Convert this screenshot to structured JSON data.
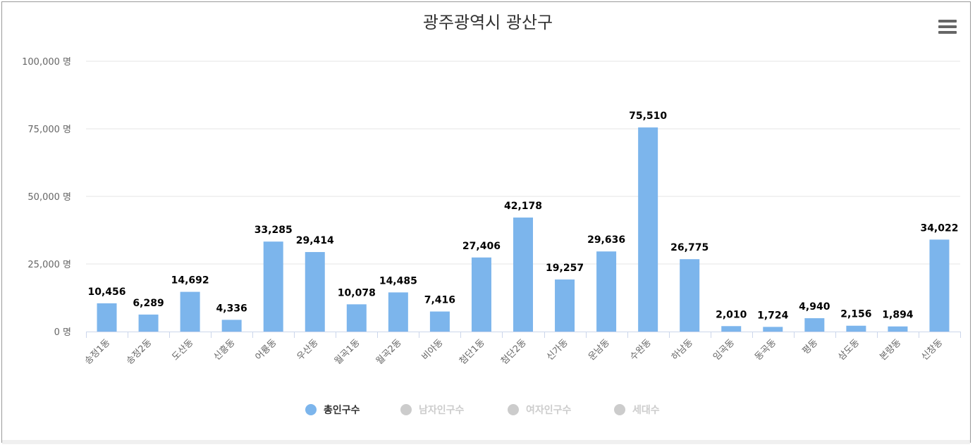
{
  "menu_icon": "hamburger-menu-icon",
  "chart_data": {
    "type": "bar",
    "title": "광주광역시 광산구",
    "categories": [
      "송정1동",
      "송정2동",
      "도산동",
      "신흥동",
      "어룡동",
      "우산동",
      "월곡1동",
      "월곡2동",
      "비아동",
      "첨단1동",
      "첨단2동",
      "신가동",
      "운남동",
      "수완동",
      "하남동",
      "임곡동",
      "동곡동",
      "평동",
      "삼도동",
      "본량동",
      "신창동"
    ],
    "series": [
      {
        "name": "총인구수",
        "color": "#7cb5ec",
        "visible": true,
        "values": [
          10456,
          6289,
          14692,
          4336,
          33285,
          29414,
          10078,
          14485,
          7416,
          27406,
          42178,
          19257,
          29636,
          75510,
          26775,
          2010,
          1724,
          4940,
          2156,
          1894,
          34022
        ],
        "data_labels": [
          "10,456",
          "6,289",
          "14,692",
          "4,336",
          "33,285",
          "29,414",
          "10,078",
          "14,485",
          "7,416",
          "27,406",
          "42,178",
          "19,257",
          "29,636",
          "75,510",
          "26,775",
          "2,010",
          "1,724",
          "4,940",
          "2,156",
          "1,894",
          "34,022"
        ]
      },
      {
        "name": "남자인구수",
        "visible": false
      },
      {
        "name": "여자인구수",
        "visible": false
      },
      {
        "name": "세대수",
        "visible": false
      }
    ],
    "yticks": [
      0,
      25000,
      50000,
      75000,
      100000
    ],
    "ytick_labels": [
      "0 명",
      "25,000 명",
      "50,000 명",
      "75,000 명",
      "100,000 명"
    ],
    "ylim": [
      0,
      100000
    ],
    "grid": true,
    "legend": "bottom-center",
    "colors": {
      "active": "#7cb5ec",
      "hidden": "#cccccc",
      "grid": "#e6e6e6",
      "axis": "#ccd6eb"
    }
  }
}
